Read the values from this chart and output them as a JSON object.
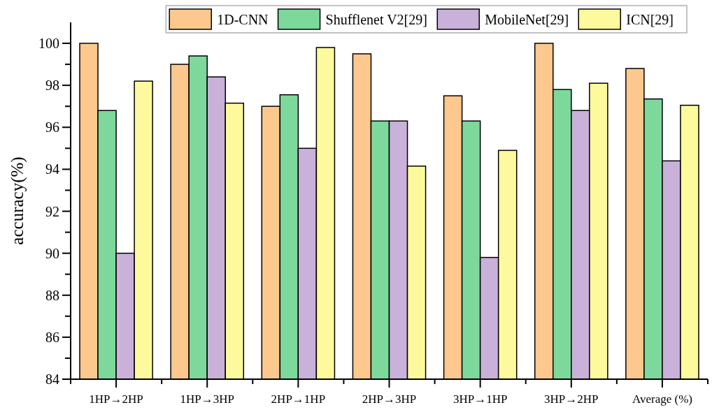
{
  "chart_data": {
    "type": "bar",
    "ylabel": "accuracy(%)",
    "categories": [
      "1HP→2HP",
      "1HP→3HP",
      "2HP→1HP",
      "2HP→3HP",
      "3HP→1HP",
      "3HP→2HP",
      "Average (%)"
    ],
    "series": [
      {
        "name": "1D-CNN",
        "color": "#fdc88d",
        "values": [
          100,
          99,
          97,
          99.5,
          97.5,
          100,
          98.8
        ]
      },
      {
        "name": "Shufflenet V2[29]",
        "color": "#7dd89c",
        "values": [
          96.8,
          99.4,
          97.55,
          96.3,
          96.3,
          97.8,
          97.35
        ]
      },
      {
        "name": "MobileNet[29]",
        "color": "#c9b1da",
        "values": [
          90,
          98.4,
          95,
          96.3,
          89.8,
          96.8,
          94.4
        ]
      },
      {
        "name": "ICN[29]",
        "color": "#fdfa9e",
        "values": [
          98.2,
          97.15,
          99.8,
          94.15,
          94.9,
          98.1,
          97.05
        ]
      }
    ],
    "ylim": [
      84,
      101
    ],
    "yticks": [
      84,
      {
        "value": 85,
        "label": null
      },
      86,
      {
        "value": 87,
        "label": null
      },
      88,
      {
        "value": 89,
        "label": null
      },
      90,
      {
        "value": 91,
        "label": null
      },
      92,
      {
        "value": 93,
        "label": null
      },
      94,
      {
        "value": 95,
        "label": null
      },
      96,
      {
        "value": 97,
        "label": null
      },
      98,
      {
        "value": 99,
        "label": null
      },
      100
    ],
    "legend": "top right",
    "grid": false
  }
}
